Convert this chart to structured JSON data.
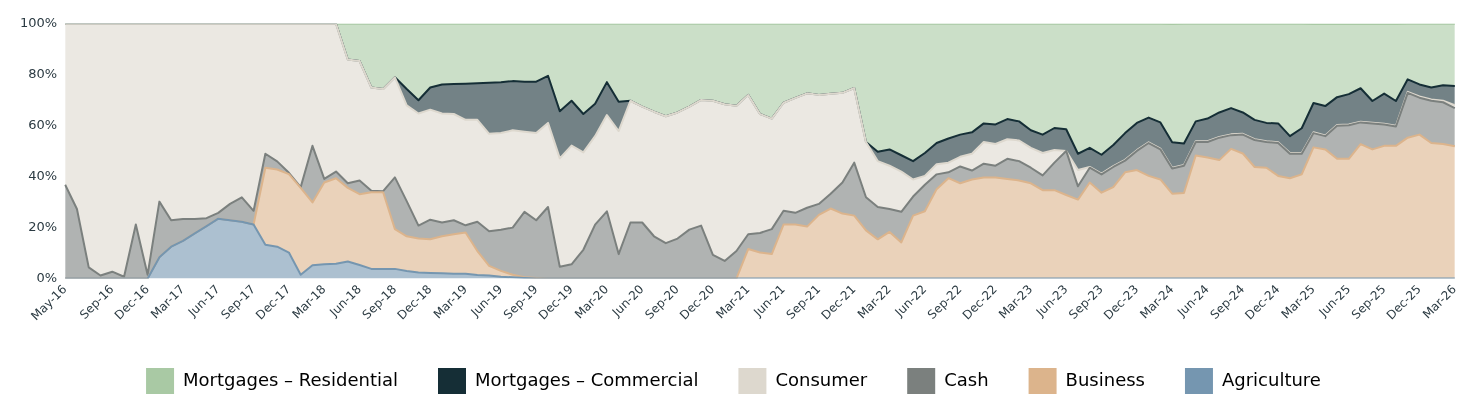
{
  "chart_data": {
    "type": "area",
    "stacked": true,
    "legend": "bottom",
    "ylim": [
      0,
      100
    ],
    "yticks": [
      {
        "value": 0,
        "label": "0%"
      },
      {
        "value": 20,
        "label": "20%"
      },
      {
        "value": 40,
        "label": "40%"
      },
      {
        "value": 60,
        "label": "60%"
      },
      {
        "value": 80,
        "label": "80%"
      },
      {
        "value": 100,
        "label": "100%"
      }
    ],
    "categories": [
      "May-16",
      null,
      null,
      null,
      "Sep-16",
      null,
      null,
      "Dec-16",
      null,
      null,
      "Mar-17",
      null,
      null,
      "Jun-17",
      null,
      null,
      "Sep-17",
      null,
      null,
      "Dec-17",
      null,
      null,
      "Mar-18",
      null,
      null,
      "Jun-18",
      null,
      null,
      "Sep-18",
      null,
      null,
      "Dec-18",
      null,
      null,
      "Mar-19",
      null,
      null,
      "Jun-19",
      null,
      null,
      "Sep-19",
      null,
      null,
      "Dec-19",
      null,
      null,
      "Mar-20",
      null,
      null,
      "Jun-20",
      null,
      null,
      "Sep-20",
      null,
      null,
      "Dec-20",
      null,
      null,
      "Mar-21",
      null,
      null,
      "Jun-21",
      null,
      null,
      "Sep-21",
      null,
      null,
      "Dec-21",
      null,
      null,
      "Mar-22",
      null,
      null,
      "Jun-22",
      null,
      null,
      "Sep-22",
      null,
      null,
      "Dec-22",
      null,
      null,
      "Mar-23",
      null,
      null,
      "Jun-23",
      null,
      null,
      "Sep-23",
      null,
      null,
      "Dec-23",
      null,
      null,
      "Mar-24",
      null,
      null,
      "Jun-24",
      null,
      null,
      "Sep-24",
      null,
      null,
      "Dec-24",
      null,
      null,
      "Mar-25",
      null,
      null,
      "Jun-25",
      null,
      null,
      "Sep-25",
      null,
      null,
      "Dec-25",
      null,
      null,
      "Mar-26"
    ],
    "series": [
      {
        "name": "Agriculture",
        "color": "#7596b0",
        "values": [
          0,
          0,
          0,
          0,
          0,
          0,
          0,
          0,
          8.4,
          12.5,
          14.8,
          17.7,
          20.6,
          23.5,
          22.9,
          22.3,
          21.2,
          13.3,
          12.5,
          10.2,
          1.5,
          5.2,
          5.6,
          5.8,
          6.7,
          5.3,
          3.8,
          3.8,
          3.8,
          3.0,
          2.4,
          2.2,
          2.1,
          1.9,
          1.9,
          1.4,
          1.2,
          0.7,
          0.5,
          0.2,
          0,
          0,
          0,
          0,
          0,
          0,
          0,
          0,
          0,
          0,
          0,
          0,
          0,
          0,
          0,
          0,
          0,
          0,
          0,
          0,
          0,
          0,
          0,
          0,
          0,
          0,
          0,
          0,
          0,
          0,
          0,
          0,
          0,
          0,
          0,
          0,
          0,
          0,
          0,
          0,
          0,
          0,
          0,
          0,
          0,
          0,
          0,
          0,
          0,
          0,
          0,
          0,
          0,
          0,
          0,
          0,
          0,
          0,
          0,
          0,
          0,
          0,
          0,
          0,
          0,
          0,
          0,
          0,
          0,
          0,
          0,
          0,
          0,
          0,
          0,
          0,
          0,
          0,
          0
        ]
      },
      {
        "name": "Business",
        "color": "#dcb48c",
        "values": [
          0,
          0,
          0,
          0,
          0,
          0,
          0,
          0,
          0,
          0,
          0,
          0,
          0,
          0,
          0,
          0,
          0,
          30.2,
          30.3,
          30.8,
          34.1,
          24.7,
          32.1,
          33.6,
          28.9,
          27.8,
          30.1,
          30.1,
          15.6,
          13.6,
          13.3,
          13.2,
          14.5,
          15.5,
          16.2,
          9.4,
          3.8,
          2.3,
          1.0,
          0.3,
          0.2,
          0,
          0,
          0,
          0,
          0,
          0,
          0,
          0,
          0,
          0,
          0,
          0,
          0,
          0,
          0,
          0,
          0,
          11.6,
          10.2,
          9.6,
          21.2,
          21.2,
          20.4,
          25,
          27.5,
          25.5,
          24.7,
          18.9,
          15.4,
          18.3,
          14.2,
          24.7,
          26.4,
          35.1,
          39.4,
          37.4,
          38.9,
          39.7,
          39.7,
          39.1,
          38.5,
          37.4,
          34.7,
          34.7,
          32.8,
          31,
          37.7,
          33.7,
          35.9,
          41.7,
          42.6,
          40.3,
          38.9,
          33.3,
          33.6,
          48.3,
          47.5,
          46.5,
          50.9,
          49.1,
          43.8,
          43.5,
          40.3,
          39.4,
          40.9,
          51.5,
          50.7,
          47,
          47,
          52.8,
          50.7,
          52.1,
          52.1,
          55.3,
          56.5,
          53.2,
          52.8,
          51.9
        ]
      },
      {
        "name": "Cash",
        "color": "#7b807e",
        "values": [
          36.8,
          27.3,
          4.4,
          1.2,
          2.7,
          0.7,
          21.2,
          1.5,
          21.8,
          10.4,
          8.6,
          5.7,
          3.1,
          2.3,
          6.4,
          9.6,
          5.4,
          5.5,
          3.2,
          0.5,
          0.3,
          22.2,
          1.4,
          2.6,
          1.8,
          5.4,
          0.6,
          0.4,
          20.3,
          13.8,
          5.1,
          7.7,
          5.4,
          5.5,
          2.8,
          11.5,
          13.6,
          16.2,
          18.5,
          25.7,
          22.7,
          28.1,
          4.6,
          5.6,
          11.3,
          21.2,
          26.4,
          9.6,
          22,
          22,
          16.6,
          13.9,
          15.7,
          19.2,
          20.8,
          9.3,
          6.9,
          10.8,
          5.8,
          7.7,
          9.8,
          5.4,
          4.6,
          7.4,
          4.3,
          5.8,
          12.2,
          20.8,
          13,
          12.7,
          9,
          12,
          7.5,
          10.4,
          5.8,
          2.3,
          6.6,
          3.5,
          5.4,
          4.6,
          7.9,
          7.6,
          6.1,
          5.8,
          10.8,
          17.3,
          5.2,
          5.8,
          7.2,
          7.9,
          4.6,
          7.5,
          12.9,
          11.8,
          9.9,
          10.7,
          5.3,
          6.1,
          8.8,
          5.4,
          7.4,
          10.6,
          10.1,
          12.9,
          9.6,
          8.1,
          5.6,
          5.2,
          13,
          13.2,
          8.5,
          10.2,
          8.4,
          7.6,
          17.6,
          14.5,
          16.6,
          16.4,
          15
        ]
      },
      {
        "name": "Consumer",
        "color": "#ddd8ce",
        "values": [
          63.2,
          72.7,
          95.6,
          98.8,
          97.3,
          99.3,
          78.8,
          98.5,
          69.8,
          77.1,
          76.6,
          76.6,
          76.3,
          74.2,
          70.7,
          68.1,
          73.4,
          51,
          54,
          58.5,
          64.1,
          47.9,
          60.9,
          58,
          48.6,
          46.9,
          40.5,
          40.1,
          39.3,
          37.6,
          44,
          43.2,
          42.8,
          41.7,
          41.4,
          40,
          38.2,
          37.9,
          38.2,
          31.4,
          34.2,
          33,
          42.6,
          46.6,
          38.2,
          34.7,
          37.8,
          48.3,
          47.8,
          45.5,
          48.9,
          49.8,
          49.5,
          48.3,
          49.3,
          60.5,
          61.5,
          57,
          54.7,
          46.7,
          43.4,
          42.4,
          45.1,
          44.9,
          42.8,
          39.2,
          35.2,
          29.3,
          21.7,
          18,
          17,
          15.8,
          6.7,
          3.5,
          4,
          3.8,
          3.8,
          6.6,
          8.5,
          8.5,
          7.7,
          8.1,
          7.8,
          8.8,
          5,
          0,
          6.4,
          0.3,
          0.3,
          0.3,
          0.3,
          0.3,
          0.3,
          0.3,
          0.3,
          0.3,
          0.3,
          0.3,
          0.3,
          0.3,
          0.3,
          0.3,
          0.3,
          0.3,
          0.3,
          0.3,
          0.3,
          0.3,
          0.3,
          0.3,
          0.3,
          0.3,
          0.3,
          0.3,
          0.4,
          0.5,
          0.5,
          0.6,
          1.2
        ]
      },
      {
        "name": "Mortgages – Commercial",
        "color": "#152e36",
        "values": [
          0,
          0,
          0,
          0,
          0,
          0,
          0,
          0,
          0,
          0,
          0,
          0,
          0,
          0,
          0,
          0,
          0,
          0,
          0,
          0,
          0,
          0,
          0,
          0,
          0,
          0,
          0,
          0,
          0,
          6.4,
          5.2,
          8.7,
          11.4,
          11.8,
          14.2,
          14.4,
          20.1,
          20,
          19.3,
          19.7,
          20.2,
          18.5,
          18.5,
          17.6,
          15.1,
          12.7,
          12.9,
          11.5,
          0,
          0,
          0,
          0,
          0,
          0,
          0,
          0,
          0,
          0,
          0,
          0,
          0,
          0,
          0,
          0,
          0,
          0,
          0,
          0,
          0,
          3.7,
          6.4,
          6.4,
          7.2,
          9,
          8.3,
          9.5,
          8.7,
          8.4,
          7.3,
          7.7,
          7.9,
          7.5,
          6.9,
          7.2,
          8.6,
          8.5,
          6.4,
          7.5,
          7.4,
          8.3,
          10.5,
          10.7,
          9.7,
          10.3,
          10,
          8.4,
          7.8,
          8.9,
          9.6,
          10.3,
          8.4,
          7.6,
          7.2,
          7.4,
          6.6,
          9.7,
          11.5,
          11.5,
          10.9,
          11.9,
          13.1,
          8.5,
          11.8,
          9.7,
          4.9,
          4.7,
          4.7,
          6.1,
          7.5
        ]
      },
      {
        "name": "Mortgages – Residential",
        "color": "#a9c9a4",
        "values": [
          0,
          0,
          0,
          0,
          0,
          0,
          0,
          0,
          0,
          0,
          0,
          0,
          0,
          0,
          0,
          0,
          0,
          0,
          0,
          0,
          0,
          0,
          0,
          0,
          14,
          14.6,
          25,
          25.6,
          21,
          25.6,
          30,
          25,
          23.8,
          23.6,
          23.5,
          23.3,
          23.1,
          22.9,
          22.5,
          22.7,
          22.7,
          20.4,
          34.3,
          30.2,
          35.4,
          31.4,
          22.9,
          30.6,
          30.2,
          32.5,
          34.5,
          36.3,
          34.8,
          32.5,
          29.9,
          30.2,
          31.6,
          32.2,
          27.9,
          35.4,
          37.2,
          31,
          29.1,
          27.3,
          27.9,
          27.5,
          27.1,
          25.2,
          46.4,
          50.2,
          49.3,
          51.6,
          53.9,
          50.7,
          46.8,
          45,
          43.5,
          42.6,
          39.1,
          39.5,
          37.4,
          38.3,
          41.8,
          43.5,
          40.9,
          41.4,
          51,
          48.7,
          51.4,
          47.6,
          42.9,
          38.9,
          36.8,
          38.7,
          46.4,
          47,
          38.3,
          37.2,
          34.8,
          33.1,
          34.8,
          37.7,
          38.9,
          39.1,
          44.1,
          41,
          31,
          32.2,
          28.7,
          27.5,
          25.2,
          30.2,
          27.3,
          30.2,
          21.8,
          23.8,
          25,
          24.1,
          24.4
        ]
      }
    ]
  }
}
